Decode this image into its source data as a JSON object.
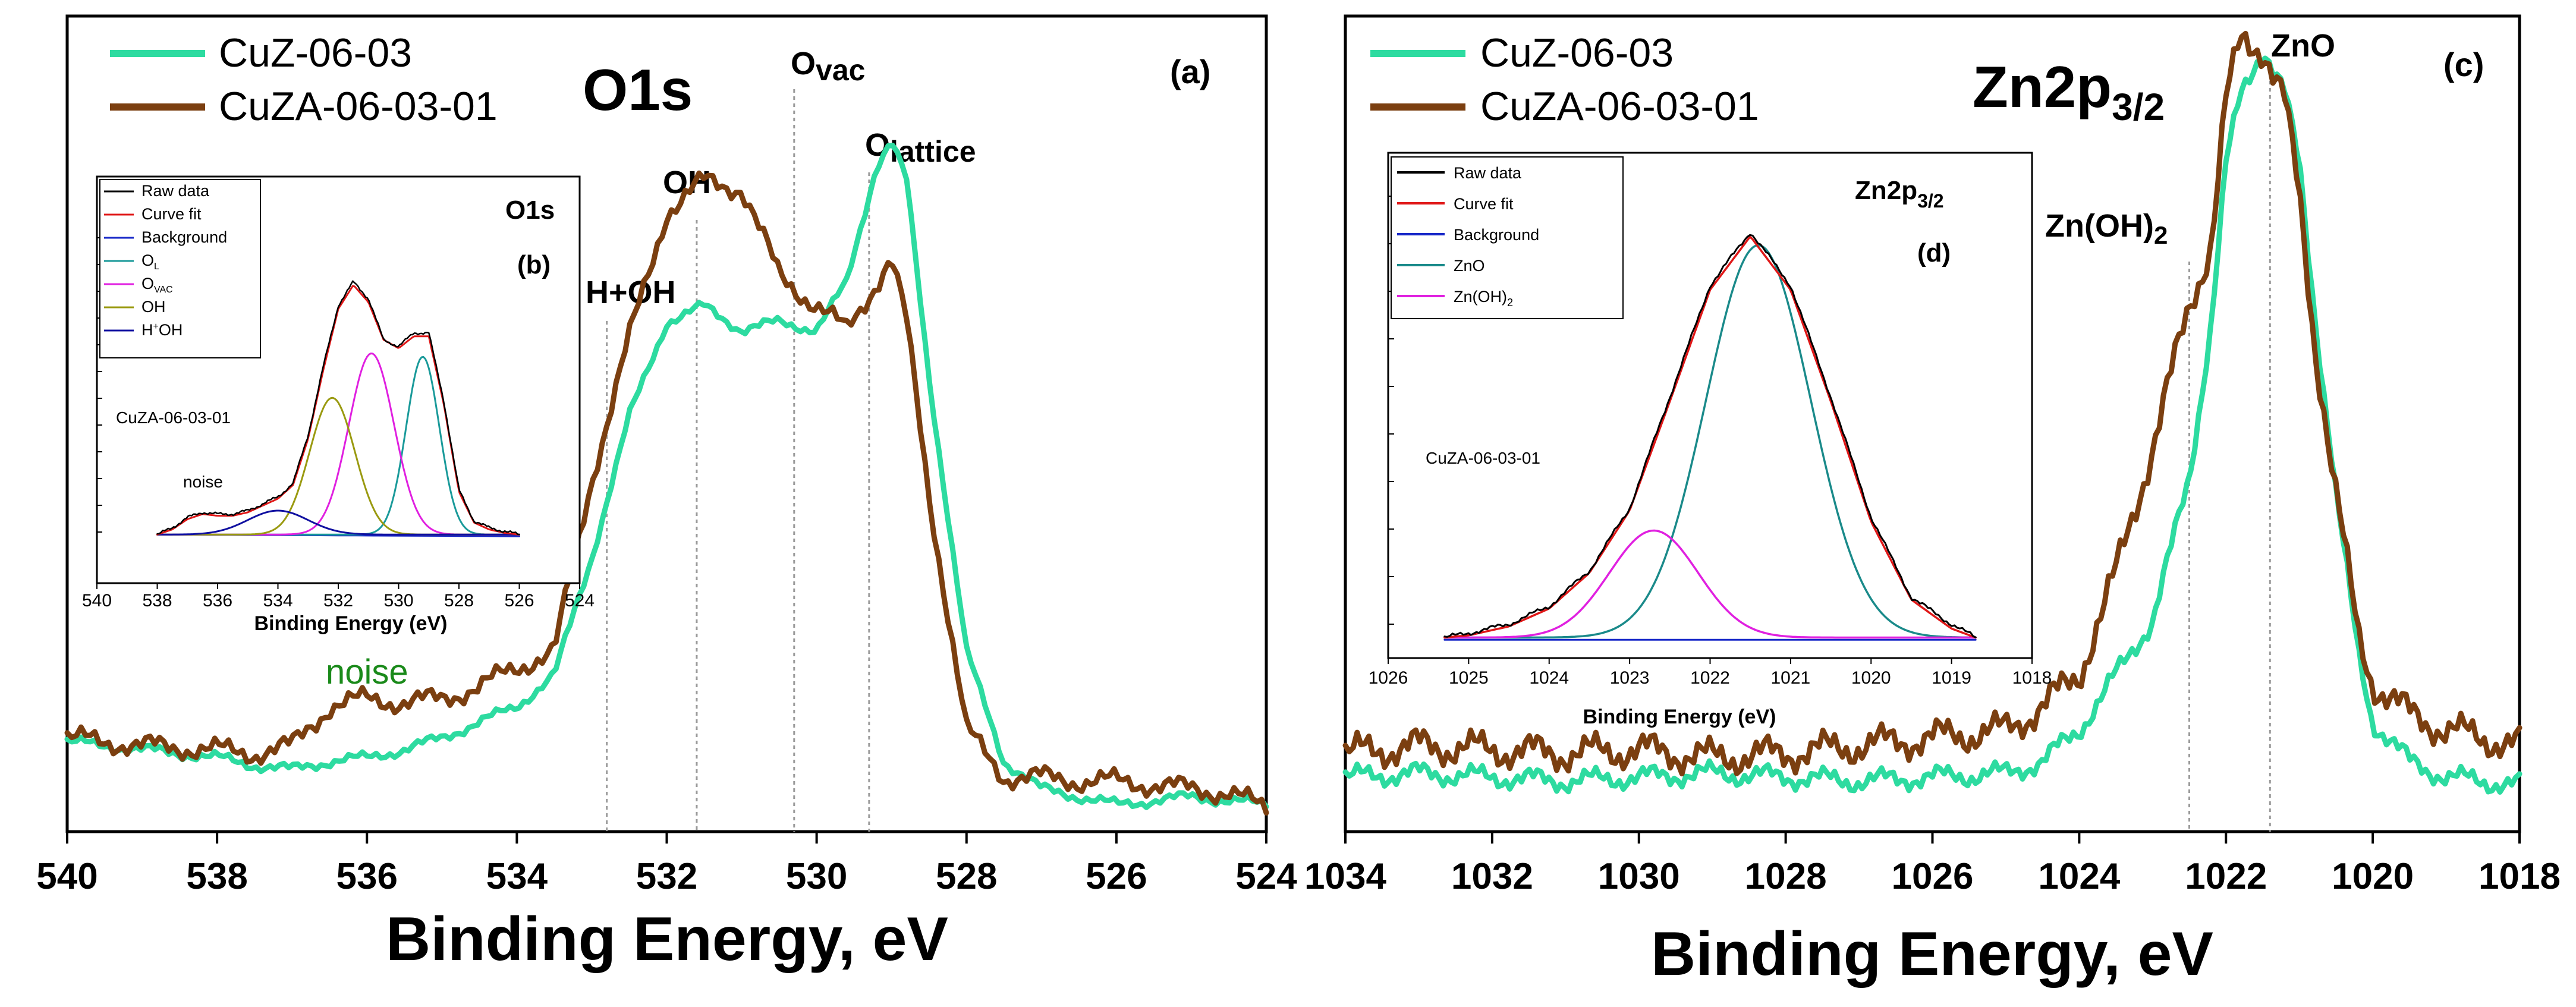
{
  "chart_data": [
    {
      "id": "a",
      "type": "line",
      "panel_letter": "(a)",
      "title": "O1s",
      "xlabel": "Binding Energy, eV",
      "ylabel": "",
      "xlim": [
        540,
        524
      ],
      "ylim": [
        0,
        100
      ],
      "x_ticks": [
        540,
        538,
        536,
        534,
        532,
        530,
        528,
        526,
        524
      ],
      "x_tick_labels": [
        "540",
        "538",
        "536",
        "534",
        "532",
        "530",
        "528",
        "526",
        "524"
      ],
      "legend_position": "top-left",
      "series": [
        {
          "name": "CuZ-06-03",
          "color": "#2ddba0",
          "x": [
            540,
            539,
            538,
            537.5,
            537,
            536.5,
            536,
            535.5,
            535,
            534.5,
            534,
            533.5,
            533,
            532.5,
            532,
            531.5,
            531,
            530.5,
            530,
            529.6,
            529.2,
            529,
            528.8,
            528.5,
            528,
            527.5,
            527,
            526.5,
            526,
            525.5,
            525,
            524.5,
            524
          ],
          "values": [
            8.5,
            7.5,
            6.5,
            5.5,
            5,
            6,
            6.5,
            7.5,
            9,
            11,
            13,
            17,
            32,
            50,
            62,
            64,
            61,
            62,
            61,
            67,
            82,
            85,
            80,
            55,
            20,
            6,
            2.5,
            1.5,
            0.5,
            1,
            1.5,
            1,
            0.5
          ]
        },
        {
          "name": "CuZA-06-03-01",
          "color": "#7b3f10",
          "x": [
            540,
            539,
            538,
            537.5,
            537,
            536.5,
            536,
            535.5,
            535,
            534.5,
            534,
            533.5,
            533,
            532.5,
            532,
            531.5,
            531,
            530.5,
            530,
            529.6,
            529.2,
            529,
            528.8,
            528.5,
            528,
            527.5,
            527,
            526.5,
            526,
            525.5,
            525,
            524.5,
            524
          ],
          "values": [
            9,
            8,
            7.5,
            7,
            8,
            13,
            14,
            13.5,
            14,
            15.5,
            18,
            20,
            42,
            60,
            76,
            80,
            79,
            68,
            64,
            61,
            67,
            70,
            62,
            40,
            10,
            4,
            4,
            3.5,
            3.5,
            3,
            2.5,
            2,
            0
          ]
        }
      ],
      "annotations": [
        {
          "text": "H+OH",
          "x": 532.8
        },
        {
          "text": "OH",
          "x": 531.6
        },
        {
          "text": "O",
          "sub": "vac",
          "x": 530.3
        },
        {
          "text": "O",
          "sub": "lattice",
          "x": 529.3
        },
        {
          "text": "noise"
        }
      ]
    },
    {
      "id": "b",
      "type": "line",
      "panel_letter": "(b)",
      "title": "O1s",
      "sample_label": "CuZA-06-03-01",
      "noise_label": "noise",
      "xlabel": "Binding Energy (eV)",
      "xlim": [
        540,
        524
      ],
      "ylim": [
        0,
        100
      ],
      "x_ticks": [
        540,
        538,
        536,
        534,
        532,
        530,
        528,
        526,
        524
      ],
      "x_tick_labels": [
        "540",
        "538",
        "536",
        "534",
        "532",
        "530",
        "528",
        "526",
        "524"
      ],
      "legend_position": "top-left",
      "legend": [
        {
          "text": "Raw data",
          "color": "#000000"
        },
        {
          "text": "Curve fit",
          "color": "#e01818"
        },
        {
          "text": "Background",
          "color": "#1828c8"
        },
        {
          "text": "O",
          "sub": "L",
          "color": "#1a9a9a"
        },
        {
          "text": "O",
          "sub": "VAC",
          "color": "#e020e0"
        },
        {
          "text": "OH",
          "color": "#9a9a10"
        },
        {
          "text": "H",
          "sup": "+",
          "text2": "OH",
          "color": "#1010a0"
        }
      ],
      "series": [
        {
          "name": "Raw data",
          "color": "#000000",
          "x": [
            538,
            537.5,
            537,
            536.5,
            536,
            535.5,
            535,
            534.5,
            534,
            533.5,
            533,
            532.5,
            532,
            531.5,
            531,
            530.5,
            530,
            529.5,
            529,
            528.5,
            528,
            527.5,
            527,
            526.5,
            526
          ],
          "values": [
            1,
            3,
            6,
            7.5,
            7,
            7,
            8,
            10,
            12,
            16,
            30,
            50,
            68,
            75,
            70,
            58,
            56,
            60,
            60,
            40,
            14,
            5,
            3,
            2,
            1
          ]
        },
        {
          "name": "Curve fit",
          "color": "#e01818",
          "x": [
            538,
            537.5,
            537,
            536.5,
            536,
            535.5,
            535,
            534.5,
            534,
            533.5,
            533,
            532.5,
            532,
            531.5,
            531,
            530.5,
            530,
            529.5,
            529,
            528.5,
            528,
            527.5,
            527,
            526.5,
            526
          ],
          "values": [
            1,
            2.5,
            5.5,
            7,
            6.5,
            6.5,
            7.5,
            9.5,
            11.5,
            15.5,
            29,
            49,
            67,
            74,
            69,
            58,
            55.5,
            59,
            59,
            39,
            13.5,
            4.5,
            2.5,
            1.5,
            1
          ]
        },
        {
          "name": "Background",
          "color": "#1828c8",
          "x": [
            538,
            526
          ],
          "values": [
            1,
            0.5
          ]
        },
        {
          "name": "O_L",
          "color": "#1a9a9a",
          "peak": 529.2,
          "height": 52,
          "width": 0.55
        },
        {
          "name": "O_VAC",
          "color": "#e020e0",
          "peak": 530.9,
          "height": 53,
          "width": 0.75
        },
        {
          "name": "OH",
          "color": "#9a9a10",
          "peak": 532.2,
          "height": 40,
          "width": 0.75
        },
        {
          "name": "H+OH",
          "color": "#1010a0",
          "peak": 534.0,
          "height": 7,
          "width": 1.0
        }
      ]
    },
    {
      "id": "c",
      "type": "line",
      "panel_letter": "(c)",
      "title": "Zn2p",
      "title_sub": "3/2",
      "xlabel": "Binding Energy, eV",
      "ylabel": "",
      "xlim": [
        1034,
        1018
      ],
      "ylim": [
        0,
        100
      ],
      "x_ticks": [
        1034,
        1032,
        1030,
        1028,
        1026,
        1024,
        1022,
        1020,
        1018
      ],
      "x_tick_labels": [
        "1034",
        "1032",
        "1030",
        "1028",
        "1026",
        "1024",
        "1022",
        "1020",
        "1018"
      ],
      "legend_position": "top-left",
      "series": [
        {
          "name": "CuZ-06-03",
          "color": "#2ddba0",
          "x": [
            1034,
            1033,
            1032,
            1031,
            1030,
            1029,
            1028,
            1027,
            1026,
            1025,
            1024.5,
            1024,
            1023.5,
            1023,
            1022.5,
            1022.2,
            1022,
            1021.8,
            1021.5,
            1021.2,
            1021,
            1020.8,
            1020.5,
            1020.2,
            1020,
            1019.5,
            1019,
            1018.5,
            1018
          ],
          "values": [
            4,
            4.5,
            4,
            3.5,
            4,
            4.5,
            4,
            3.5,
            4,
            4.5,
            6,
            10,
            17,
            24,
            42,
            62,
            82,
            91,
            97,
            91,
            82,
            64,
            40,
            20,
            11,
            6,
            4,
            3.5,
            3
          ]
        },
        {
          "name": "CuZA-06-03-01",
          "color": "#7b3f10",
          "x": [
            1034,
            1033,
            1032,
            1031,
            1030,
            1029,
            1028,
            1027,
            1026,
            1025,
            1024.5,
            1024,
            1023.5,
            1023,
            1022.5,
            1022.2,
            1022,
            1021.8,
            1021.5,
            1021.2,
            1021,
            1020.8,
            1020.5,
            1020.2,
            1020,
            1019.5,
            1019,
            1018.5,
            1018
          ],
          "values": [
            7,
            8,
            7.5,
            7,
            7.5,
            6.5,
            7,
            8,
            9,
            10,
            13,
            17,
            30,
            46,
            64,
            72,
            90,
            98,
            97,
            90,
            78,
            60,
            40,
            22,
            16,
            12,
            10,
            9,
            8
          ]
        }
      ],
      "annotations": [
        {
          "text": "ZnO",
          "x": 1021.4
        },
        {
          "text": "Zn(OH)",
          "sub": "2",
          "x": 1022.5
        }
      ]
    },
    {
      "id": "d",
      "type": "line",
      "panel_letter": "(d)",
      "title": "Zn2p",
      "title_sub": "3/2",
      "sample_label": "CuZA-06-03-01",
      "xlabel": "Binding Energy (eV)",
      "xlim": [
        1026,
        1018
      ],
      "ylim": [
        0,
        100
      ],
      "x_ticks": [
        1026,
        1025,
        1024,
        1023,
        1022,
        1021,
        1020,
        1019,
        1018
      ],
      "x_tick_labels": [
        "1026",
        "1025",
        "1024",
        "1023",
        "1022",
        "1021",
        "1020",
        "1019",
        "1018"
      ],
      "legend_position": "top-left",
      "legend": [
        {
          "text": "Raw data",
          "color": "#000000"
        },
        {
          "text": "Curve fit",
          "color": "#e01818"
        },
        {
          "text": "Background",
          "color": "#1828c8"
        },
        {
          "text": "ZnO",
          "color": "#1a8a8a"
        },
        {
          "text": "Zn(OH)",
          "sub": "2",
          "color": "#e020e0"
        }
      ],
      "series": [
        {
          "name": "Raw data",
          "color": "#000000",
          "x": [
            1025.3,
            1025,
            1024.5,
            1024,
            1023.5,
            1023,
            1022.5,
            1022,
            1021.5,
            1021,
            1020.5,
            1020,
            1019.5,
            1019,
            1018.7
          ],
          "values": [
            1,
            2,
            4,
            8,
            16,
            30,
            55,
            80,
            92,
            80,
            55,
            28,
            10,
            4,
            1
          ]
        },
        {
          "name": "Curve fit",
          "color": "#e01818",
          "x": [
            1025.3,
            1025,
            1024.5,
            1024,
            1023.5,
            1023,
            1022.5,
            1022,
            1021.5,
            1021,
            1020.5,
            1020,
            1019.5,
            1019,
            1018.7
          ],
          "values": [
            1,
            1.5,
            3.5,
            7.5,
            15.5,
            29.5,
            54,
            79,
            91,
            79,
            54,
            27,
            9.5,
            3,
            1
          ]
        },
        {
          "name": "Background",
          "color": "#1828c8",
          "x": [
            1025.3,
            1018.7
          ],
          "values": [
            0.5,
            0.5
          ]
        },
        {
          "name": "ZnO",
          "color": "#1a8a8a",
          "peak": 1021.4,
          "height": 88,
          "width": 0.65
        },
        {
          "name": "Zn(OH)2",
          "color": "#e020e0",
          "peak": 1022.7,
          "height": 24,
          "width": 0.55
        }
      ]
    }
  ]
}
